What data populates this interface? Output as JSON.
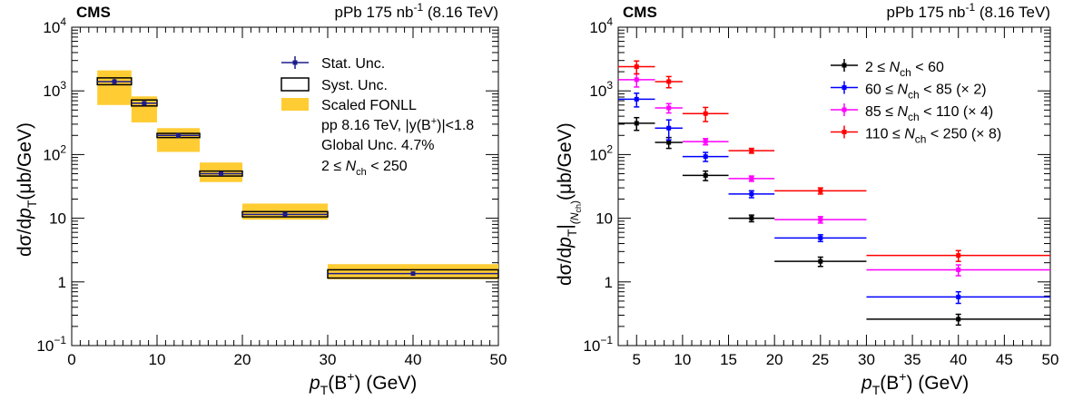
{
  "chart_data": [
    {
      "type": "scatter",
      "title": "",
      "header_left": "CMS",
      "header_right": {
        "main": "pPb 175 nb",
        "sup": "-1",
        "energy": " (8.16 TeV)"
      },
      "xlabel": {
        "main": "p",
        "sub": "T",
        "rest": "(B",
        "sup": "+",
        "end": ") (GeV)"
      },
      "ylabel": {
        "pre": "dσ/d",
        "p": "p",
        "sub": "T",
        "unit": "(μb/GeV)"
      },
      "xlim": [
        0,
        50
      ],
      "ylim": [
        0.1,
        10000
      ],
      "yscale": "log",
      "x_ticks": [
        0,
        10,
        20,
        30,
        40,
        50
      ],
      "x_tick_labels": [
        "0",
        "10",
        "20",
        "30",
        "40",
        "50"
      ],
      "y_tick_labels": [
        {
          "value": 0.1,
          "base": "10",
          "exp": "−1"
        },
        {
          "value": 1,
          "base": "1",
          "exp": ""
        },
        {
          "value": 10,
          "base": "10",
          "exp": ""
        },
        {
          "value": 100,
          "base": "10",
          "exp": "2"
        },
        {
          "value": 1000,
          "base": "10",
          "exp": "3"
        },
        {
          "value": 10000,
          "base": "10",
          "exp": "4"
        }
      ],
      "bins": [
        {
          "xlo": 3,
          "xhi": 7,
          "x": 5,
          "y": 1400,
          "stat": 150,
          "sys_lo": 1250,
          "sys_hi": 1600,
          "fonll_lo": 600,
          "fonll_hi": 2100
        },
        {
          "xlo": 7,
          "xhi": 10,
          "x": 8.5,
          "y": 640,
          "stat": 50,
          "sys_lo": 580,
          "sys_hi": 720,
          "fonll_lo": 320,
          "fonll_hi": 820
        },
        {
          "xlo": 10,
          "xhi": 15,
          "x": 12.5,
          "y": 200,
          "stat": 12,
          "sys_lo": 185,
          "sys_hi": 215,
          "fonll_lo": 110,
          "fonll_hi": 260
        },
        {
          "xlo": 15,
          "xhi": 20,
          "x": 17.5,
          "y": 50,
          "stat": 3,
          "sys_lo": 46,
          "sys_hi": 55,
          "fonll_lo": 37,
          "fonll_hi": 75
        },
        {
          "xlo": 20,
          "xhi": 30,
          "x": 25,
          "y": 11.5,
          "stat": 0.7,
          "sys_lo": 10.5,
          "sys_hi": 12.7,
          "fonll_lo": 9.5,
          "fonll_hi": 17
        },
        {
          "xlo": 30,
          "xhi": 50,
          "x": 40,
          "y": 1.35,
          "stat": 0.1,
          "sys_lo": 1.15,
          "sys_hi": 1.55,
          "fonll_lo": 1.1,
          "fonll_hi": 1.9
        }
      ],
      "legend": {
        "placement": "top-right",
        "entries": [
          "Stat. Unc.",
          "Syst. Unc.",
          "Scaled FONLL"
        ],
        "info": [
          "pp 8.16 TeV, |y(B",
          "+",
          ")|<1.8",
          "Global Unc. 4.7%"
        ],
        "nch_range": {
          "lo": "2",
          "le": " ≤ ",
          "n": "N",
          "sub": "ch",
          "hi": " < 250"
        }
      },
      "colors": {
        "marker": "#1c1c8c",
        "fonll": "#ffcc33",
        "syst": "#000000"
      }
    },
    {
      "type": "scatter",
      "title": "",
      "header_left": "CMS",
      "header_right": {
        "main": "pPb 175 nb",
        "sup": "-1",
        "energy": " (8.16 TeV)"
      },
      "xlabel": {
        "main": "p",
        "sub": "T",
        "rest": "(B",
        "sup": "+",
        "end": ") (GeV)"
      },
      "ylabel": {
        "pre": "dσ/d",
        "p": "p",
        "sub": "T",
        "bar": "|",
        "subsub": "(N",
        "subsubsub": "ch",
        "close": ")",
        "unit": "(μb/GeV)"
      },
      "xlim": [
        3,
        50
      ],
      "ylim": [
        0.1,
        10000
      ],
      "yscale": "log",
      "x_ticks": [
        5,
        10,
        15,
        20,
        25,
        30,
        35,
        40,
        45,
        50
      ],
      "x_tick_labels": [
        "5",
        "10",
        "15",
        "20",
        "25",
        "30",
        "35",
        "40",
        "45",
        "50"
      ],
      "y_tick_labels": [
        {
          "value": 0.1,
          "base": "10",
          "exp": "−1"
        },
        {
          "value": 1,
          "base": "1",
          "exp": ""
        },
        {
          "value": 10,
          "base": "10",
          "exp": ""
        },
        {
          "value": 100,
          "base": "10",
          "exp": "2"
        },
        {
          "value": 1000,
          "base": "10",
          "exp": "3"
        },
        {
          "value": 10000,
          "base": "10",
          "exp": "4"
        }
      ],
      "bin_edges": [
        [
          3,
          7
        ],
        [
          7,
          10
        ],
        [
          10,
          15
        ],
        [
          15,
          20
        ],
        [
          20,
          30
        ],
        [
          30,
          50
        ]
      ],
      "x": [
        5,
        8.5,
        12.5,
        17.5,
        25,
        40
      ],
      "series": [
        {
          "label_lo": "2",
          "label_hi": " < 60",
          "scale": "",
          "color": "#000000",
          "y": [
            310,
            155,
            47,
            10,
            2.1,
            0.26
          ],
          "err": [
            70,
            30,
            8,
            1.2,
            0.35,
            0.05
          ]
        },
        {
          "label_lo": "60",
          "label_hi": " < 85",
          "scale": " (× 2)",
          "color": "#0000ff",
          "y": [
            740,
            260,
            93,
            24,
            4.9,
            0.58
          ],
          "err": [
            180,
            90,
            15,
            3,
            0.6,
            0.12
          ]
        },
        {
          "label_lo": "85",
          "label_hi": " < 110",
          "scale": " (× 4)",
          "color": "#ff00ff",
          "y": [
            1500,
            540,
            160,
            42,
            9.5,
            1.55
          ],
          "err": [
            350,
            90,
            18,
            4,
            1.1,
            0.3
          ]
        },
        {
          "label_lo": "110",
          "label_hi": " < 250",
          "scale": " (× 8)",
          "color": "#ff0000",
          "y": [
            2400,
            1400,
            440,
            115,
            27,
            2.6
          ],
          "err": [
            550,
            280,
            110,
            10,
            3,
            0.5
          ]
        }
      ],
      "legend": {
        "placement": "top-right",
        "le": " ≤ ",
        "n": "N",
        "sub": "ch"
      }
    }
  ]
}
